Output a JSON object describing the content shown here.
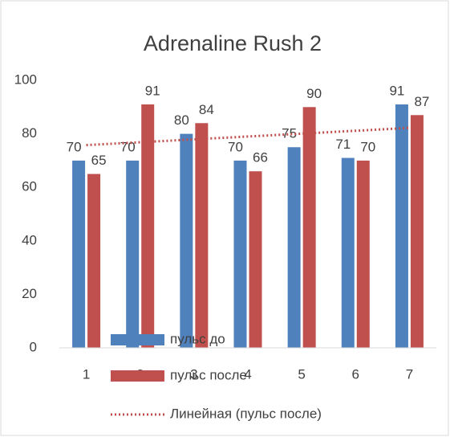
{
  "chart_data": {
    "type": "bar",
    "title": "Adrenaline Rush 2",
    "categories": [
      "1",
      "2",
      "3",
      "4",
      "5",
      "6",
      "7"
    ],
    "series": [
      {
        "name": "пульс до",
        "color": "#4f81bd",
        "values": [
          70,
          70,
          80,
          70,
          75,
          71,
          91
        ]
      },
      {
        "name": "пульс после",
        "color": "#c0504d",
        "values": [
          65,
          91,
          84,
          66,
          90,
          70,
          87
        ],
        "trendline": {
          "name": "Линейная (пульс после)",
          "kind": "linear",
          "style": "dotted"
        }
      }
    ],
    "ylim": [
      0,
      100
    ],
    "yticks": [
      0,
      20,
      40,
      60,
      80,
      100
    ],
    "grid": false,
    "legend": "bottom"
  }
}
